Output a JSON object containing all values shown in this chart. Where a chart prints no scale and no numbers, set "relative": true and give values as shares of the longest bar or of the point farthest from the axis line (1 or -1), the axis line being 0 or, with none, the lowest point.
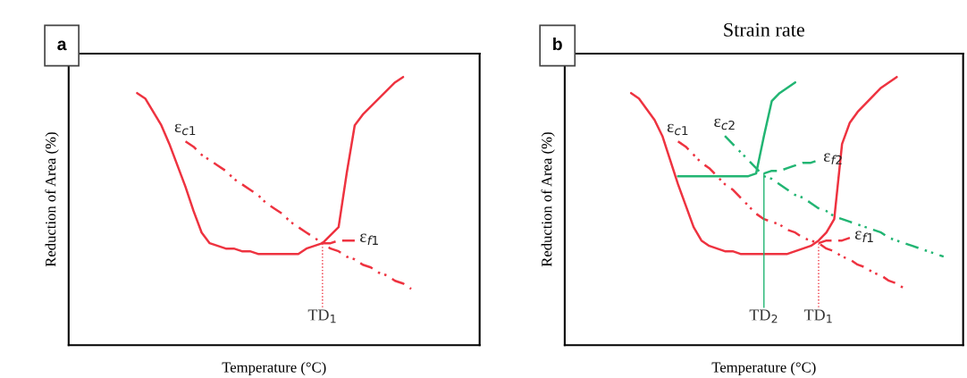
{
  "chart_data": [
    {
      "type": "line",
      "relative": true,
      "xlabel": "Temperature (°C)",
      "ylabel": "Reduction of Area (%)",
      "categories": [
        null,
        null,
        null,
        null,
        null,
        null,
        null,
        null,
        null,
        null,
        null,
        null,
        null,
        null,
        null,
        null,
        null,
        null,
        null,
        null,
        null,
        null,
        null,
        null,
        null,
        null,
        null,
        null,
        null,
        null,
        null,
        null,
        null,
        null,
        null,
        null,
        null,
        null,
        null,
        null,
        null,
        null,
        null,
        null,
        null,
        null,
        null,
        null,
        null,
        null,
        null
      ],
      "series": [
        {
          "color": "#ee3340",
          "line_style": "solid",
          "values": [
            null,
            null,
            null,
            null,
            null,
            null,
            null,
            null,
            0.94,
            0.92,
            0.87,
            0.82,
            0.75,
            0.67,
            0.59,
            0.5,
            0.42,
            0.38,
            0.37,
            0.36,
            0.36,
            0.35,
            0.35,
            0.34,
            0.34,
            0.34,
            0.34,
            0.34,
            0.34,
            0.36,
            0.37,
            0.38,
            0.41,
            0.44,
            0.64,
            0.82,
            0.86,
            0.89,
            0.92,
            0.95,
            0.98,
            1,
            null,
            null,
            null,
            null,
            null,
            null,
            null,
            null,
            null
          ]
        },
        {
          "name": "ε$_{c1}$",
          "color": "#ee3340",
          "line_style": "dashdot",
          "values": [
            null,
            null,
            null,
            null,
            null,
            null,
            null,
            null,
            null,
            null,
            null,
            null,
            null,
            null,
            0.76,
            0.74,
            0.71,
            0.69,
            0.67,
            0.65,
            0.62,
            0.6,
            0.58,
            0.56,
            0.53,
            0.51,
            0.49,
            0.46,
            0.44,
            0.42,
            0.4,
            0.38,
            0.36,
            0.35,
            0.33,
            0.32,
            0.3,
            0.29,
            0.27,
            0.26,
            0.24,
            0.23,
            0.21,
            null,
            null,
            null,
            null,
            null,
            null,
            null,
            null
          ]
        },
        {
          "name": "ε$_{f1}$",
          "color": "#ee3340",
          "line_style": "dashed",
          "values": [
            null,
            null,
            null,
            null,
            null,
            null,
            null,
            null,
            null,
            null,
            null,
            null,
            null,
            null,
            null,
            null,
            null,
            null,
            null,
            null,
            null,
            null,
            null,
            null,
            null,
            null,
            null,
            null,
            null,
            null,
            null,
            0.38,
            0.38,
            0.39,
            0.39,
            0.39,
            null,
            null,
            null,
            null,
            null,
            null,
            null,
            null,
            null,
            null,
            null,
            null,
            null,
            null,
            null
          ]
        }
      ],
      "annotations": [
        "a",
        "TD$_{1}$"
      ]
    },
    {
      "type": "line",
      "relative": true,
      "title": "Strain rate",
      "xlabel": "Temperature (°C)",
      "ylabel": "Reduction of Area (%)",
      "categories": [
        null,
        null,
        null,
        null,
        null,
        null,
        null,
        null,
        null,
        null,
        null,
        null,
        null,
        null,
        null,
        null,
        null,
        null,
        null,
        null,
        null,
        null,
        null,
        null,
        null,
        null,
        null,
        null,
        null,
        null,
        null,
        null,
        null,
        null,
        null,
        null,
        null,
        null,
        null,
        null,
        null,
        null,
        null,
        null,
        null,
        null,
        null,
        null,
        null,
        null,
        null
      ],
      "series": [
        {
          "color": "#ee3340",
          "line_style": "solid",
          "values": [
            null,
            null,
            null,
            null,
            null,
            null,
            null,
            null,
            0.94,
            0.92,
            0.88,
            0.84,
            0.78,
            0.69,
            0.6,
            0.52,
            0.44,
            0.39,
            0.37,
            0.36,
            0.35,
            0.35,
            0.34,
            0.34,
            0.34,
            0.34,
            0.34,
            0.34,
            0.34,
            0.35,
            0.36,
            0.37,
            0.39,
            0.42,
            0.47,
            0.75,
            0.83,
            0.87,
            0.9,
            0.93,
            0.96,
            0.98,
            1,
            null,
            null,
            null,
            null,
            null,
            null,
            null,
            null
          ]
        },
        {
          "color": "#22b573",
          "line_style": "solid",
          "values": [
            null,
            null,
            null,
            null,
            null,
            null,
            null,
            null,
            null,
            null,
            null,
            null,
            null,
            null,
            0.63,
            0.63,
            0.63,
            0.63,
            0.63,
            0.63,
            0.63,
            0.63,
            0.63,
            0.63,
            0.64,
            0.78,
            0.91,
            0.94,
            0.96,
            0.98,
            null,
            null,
            null,
            null,
            null,
            null,
            null,
            null,
            null,
            null,
            null,
            null,
            null,
            null,
            null,
            null,
            null,
            null,
            null,
            null,
            null
          ]
        },
        {
          "name": "ε$_{c1}$",
          "color": "#ee3340",
          "line_style": "dashdot",
          "values": [
            null,
            null,
            null,
            null,
            null,
            null,
            null,
            null,
            null,
            null,
            null,
            null,
            null,
            null,
            0.76,
            0.74,
            0.71,
            0.68,
            0.66,
            0.63,
            0.6,
            0.58,
            0.55,
            0.52,
            0.49,
            0.47,
            0.46,
            0.45,
            0.43,
            0.42,
            0.4,
            0.39,
            0.38,
            0.36,
            0.35,
            0.33,
            0.32,
            0.3,
            0.29,
            0.27,
            0.26,
            0.24,
            0.23,
            0.21,
            null,
            null,
            null,
            null,
            null,
            null,
            null
          ]
        },
        {
          "name": "ε$_{f1}$",
          "color": "#ee3340",
          "line_style": "dashed",
          "values": [
            null,
            null,
            null,
            null,
            null,
            null,
            null,
            null,
            null,
            null,
            null,
            null,
            null,
            null,
            null,
            null,
            null,
            null,
            null,
            null,
            null,
            null,
            null,
            null,
            null,
            null,
            null,
            null,
            null,
            null,
            null,
            null,
            0.38,
            0.39,
            0.39,
            0.39,
            0.4,
            null,
            null,
            null,
            null,
            null,
            null,
            null,
            null,
            null,
            null,
            null,
            null,
            null,
            null
          ]
        },
        {
          "name": "ε$_{c2}$",
          "color": "#22b573",
          "line_style": "dashdot",
          "values": [
            null,
            null,
            null,
            null,
            null,
            null,
            null,
            null,
            null,
            null,
            null,
            null,
            null,
            null,
            null,
            null,
            null,
            null,
            null,
            null,
            0.78,
            0.75,
            0.72,
            0.69,
            0.66,
            0.63,
            0.62,
            0.6,
            0.58,
            0.56,
            0.55,
            0.53,
            0.51,
            0.5,
            0.48,
            0.47,
            0.46,
            0.45,
            0.44,
            0.43,
            0.42,
            0.4,
            0.39,
            0.38,
            0.37,
            0.36,
            0.35,
            0.34,
            0.33,
            null,
            null
          ]
        },
        {
          "name": "ε$_{f2}$",
          "color": "#22b573",
          "line_style": "dashed",
          "values": [
            null,
            null,
            null,
            null,
            null,
            null,
            null,
            null,
            null,
            null,
            null,
            null,
            null,
            null,
            null,
            null,
            null,
            null,
            null,
            null,
            null,
            null,
            null,
            null,
            null,
            0.64,
            0.65,
            0.65,
            0.66,
            0.67,
            0.68,
            0.68,
            0.69,
            null,
            null,
            null,
            null,
            null,
            null,
            null,
            null,
            null,
            null,
            null,
            null,
            null,
            null,
            null,
            null,
            null,
            null
          ]
        }
      ],
      "annotations": [
        "b",
        "TD$_{1}$",
        "TD$_{2}$"
      ]
    }
  ]
}
